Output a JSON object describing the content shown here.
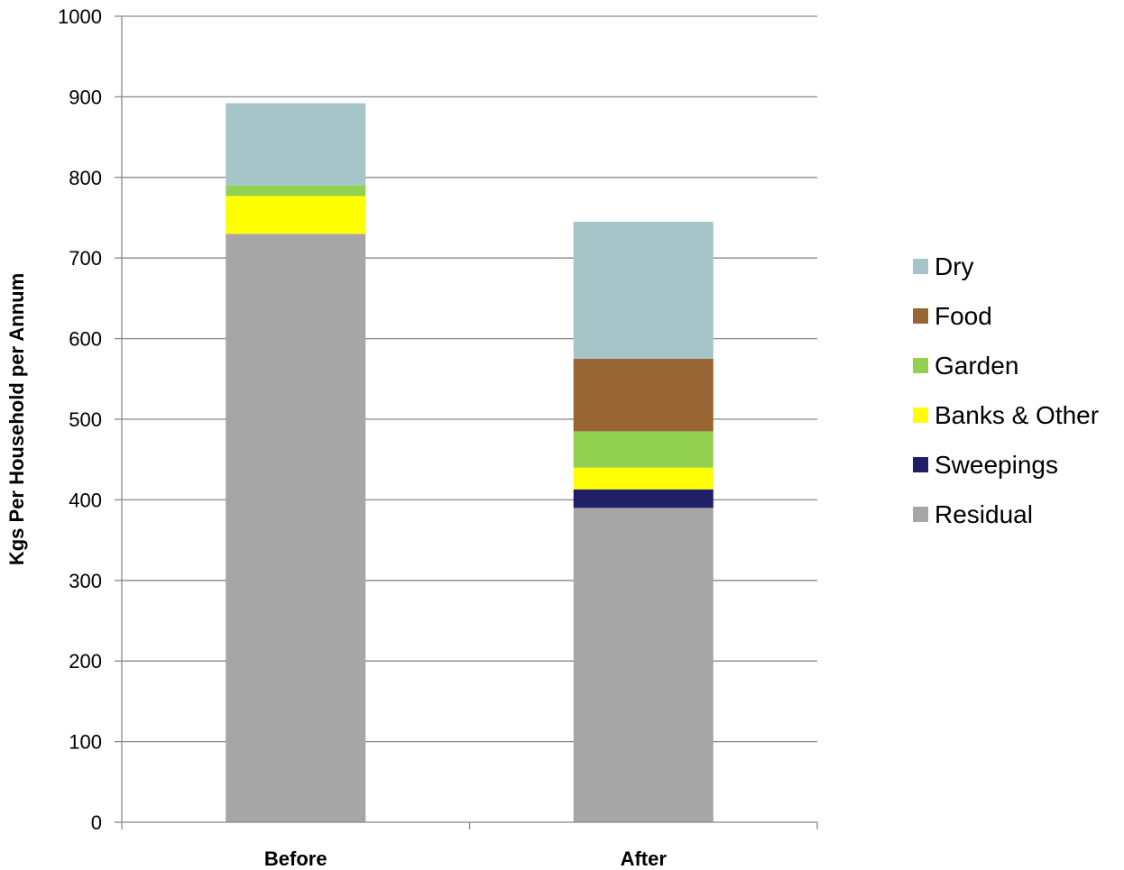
{
  "chart_data": {
    "type": "bar",
    "stacked": true,
    "categories": [
      "Before",
      "After"
    ],
    "series": [
      {
        "name": "Residual",
        "color": "#a6a6a6",
        "values": [
          730,
          390
        ]
      },
      {
        "name": "Sweepings",
        "color": "#1f1f66",
        "values": [
          0,
          23
        ]
      },
      {
        "name": "Banks & Other",
        "color": "#ffff00",
        "values": [
          47,
          27
        ]
      },
      {
        "name": "Garden",
        "color": "#92d050",
        "values": [
          13,
          45
        ]
      },
      {
        "name": "Food",
        "color": "#996633",
        "values": [
          0,
          90
        ]
      },
      {
        "name": "Dry",
        "color": "#a5c5c8",
        "values": [
          102,
          170
        ]
      }
    ],
    "ylabel": "Kgs Per Household per Annum",
    "ylim": [
      0,
      1000
    ],
    "yticks": [
      0,
      100,
      200,
      300,
      400,
      500,
      600,
      700,
      800,
      900,
      1000
    ],
    "grid": true,
    "legend_position": "right",
    "legend_order": [
      "Dry",
      "Food",
      "Garden",
      "Banks & Other",
      "Sweepings",
      "Residual"
    ]
  }
}
